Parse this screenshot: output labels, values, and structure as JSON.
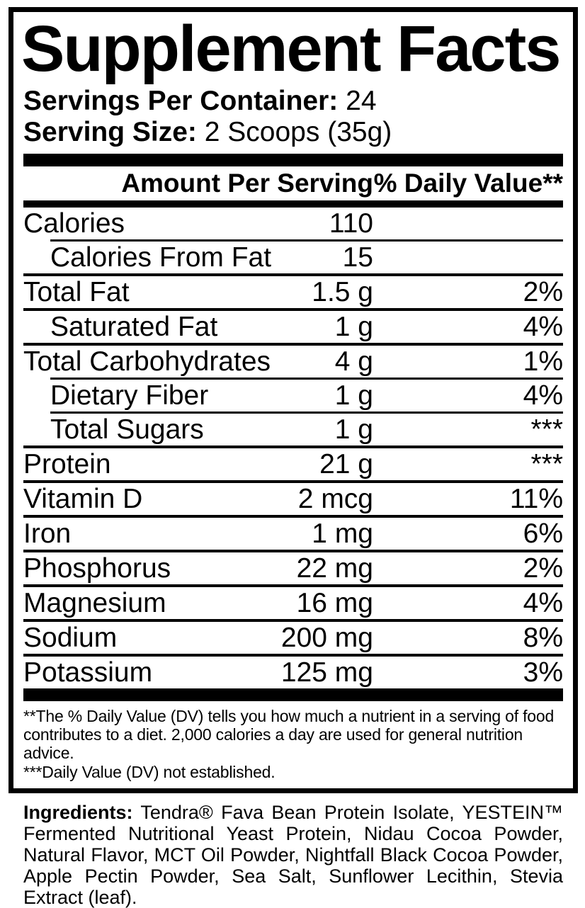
{
  "colors": {
    "text": "#000000",
    "background": "#ffffff"
  },
  "title": "Supplement Facts",
  "serving_info": [
    {
      "label": "Servings Per Container:",
      "value": "24"
    },
    {
      "label": "Serving Size:",
      "value": "2 Scoops (35g)"
    }
  ],
  "table": {
    "header": {
      "amount": "Amount Per Serving",
      "daily_value": "% Daily Value**"
    },
    "rows": [
      {
        "name": "Calories",
        "amount": "110",
        "dv": "",
        "indent": false,
        "separator": "thin-indent"
      },
      {
        "name": "Calories From Fat",
        "amount": "15",
        "dv": "",
        "indent": true,
        "separator": "full"
      },
      {
        "name": "Total Fat",
        "amount": "1.5 g",
        "dv": "2%",
        "indent": false,
        "separator": "full"
      },
      {
        "name": "Saturated Fat",
        "amount": "1 g",
        "dv": "4%",
        "indent": true,
        "separator": "full"
      },
      {
        "name": "Total Carbohydrates",
        "amount": "4 g",
        "dv": "1%",
        "indent": false,
        "separator": "thin-indent"
      },
      {
        "name": "Dietary Fiber",
        "amount": "1 g",
        "dv": "4%",
        "indent": true,
        "separator": "thin-indent"
      },
      {
        "name": "Total Sugars",
        "amount": "1 g",
        "dv": "***",
        "indent": true,
        "separator": "full"
      },
      {
        "name": "Protein",
        "amount": "21 g",
        "dv": "***",
        "indent": false,
        "separator": "full"
      },
      {
        "name": "Vitamin D",
        "amount": "2 mcg",
        "dv": "11%",
        "indent": false,
        "separator": "full"
      },
      {
        "name": "Iron",
        "amount": "1 mg",
        "dv": "6%",
        "indent": false,
        "separator": "full"
      },
      {
        "name": "Phosphorus",
        "amount": "22 mg",
        "dv": "2%",
        "indent": false,
        "separator": "full"
      },
      {
        "name": "Magnesium",
        "amount": "16 mg",
        "dv": "4%",
        "indent": false,
        "separator": "full"
      },
      {
        "name": "Sodium",
        "amount": "200 mg",
        "dv": "8%",
        "indent": false,
        "separator": "full"
      },
      {
        "name": "Potassium",
        "amount": "125 mg",
        "dv": "3%",
        "indent": false,
        "separator": "none"
      }
    ]
  },
  "footnotes": [
    "**The % Daily Value (DV) tells you how much a nutrient in a serving of food contributes to a diet. 2,000 calories a day are used for general nutrition advice.",
    "***Daily Value (DV) not established."
  ],
  "ingredients": {
    "label": "Ingredients:",
    "text": "Tendra® Fava Bean Protein Isolate, YESTEIN™ Fermented Nutritional Yeast Protein, Nidau Cocoa Powder, Natural Flavor, MCT Oil Powder, Nightfall Black Cocoa Powder, Apple Pectin Powder, Sea Salt, Sunflower Lecithin, Stevia Extract (leaf)."
  }
}
